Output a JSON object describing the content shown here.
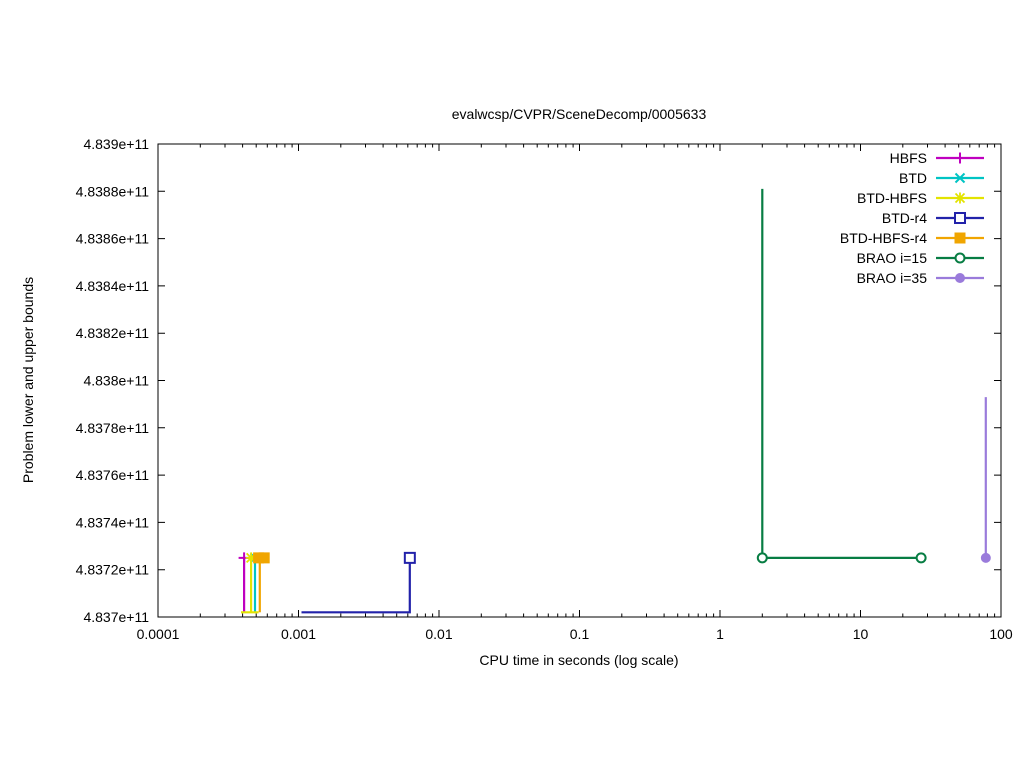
{
  "chart_data": {
    "type": "line",
    "title": "evalwcsp/CVPR/SceneDecomp/0005633",
    "xlabel": "CPU time in seconds (log scale)",
    "ylabel": "Problem lower and upper bounds",
    "x_scale": "log",
    "grid": false,
    "legend_position": "top-right",
    "xlim": [
      0.0001,
      100
    ],
    "ylim": [
      483700000000.0,
      483900000000.0
    ],
    "x_ticks": [
      {
        "value": 0.0001,
        "label": "0.0001"
      },
      {
        "value": 0.001,
        "label": "0.001"
      },
      {
        "value": 0.01,
        "label": "0.01"
      },
      {
        "value": 0.1,
        "label": "0.1"
      },
      {
        "value": 1,
        "label": "1"
      },
      {
        "value": 10,
        "label": "10"
      },
      {
        "value": 100,
        "label": "100"
      }
    ],
    "y_ticks": [
      {
        "value": 483700000000.0,
        "label": "4.837e+11"
      },
      {
        "value": 483720000000.0,
        "label": "4.8372e+11"
      },
      {
        "value": 483740000000.0,
        "label": "4.8374e+11"
      },
      {
        "value": 483760000000.0,
        "label": "4.8376e+11"
      },
      {
        "value": 483780000000.0,
        "label": "4.8378e+11"
      },
      {
        "value": 483800000000.0,
        "label": "4.838e+11"
      },
      {
        "value": 483820000000.0,
        "label": "4.8382e+11"
      },
      {
        "value": 483840000000.0,
        "label": "4.8384e+11"
      },
      {
        "value": 483860000000.0,
        "label": "4.8386e+11"
      },
      {
        "value": 483880000000.0,
        "label": "4.8388e+11"
      },
      {
        "value": 483900000000.0,
        "label": "4.839e+11"
      }
    ],
    "series": [
      {
        "name": "HBFS",
        "color": "#bf00bf",
        "marker": "plus",
        "lines": [
          [
            [
              0.00041,
              483702000000.0
            ],
            [
              0.00041,
              483725000000.0
            ]
          ]
        ],
        "markers": [
          [
            0.00041,
            483725000000.0
          ]
        ]
      },
      {
        "name": "BTD",
        "color": "#00c4c4",
        "marker": "x",
        "lines": [
          [
            [
              0.00049,
              483702000000.0
            ],
            [
              0.00049,
              483725000000.0
            ]
          ]
        ],
        "markers": [
          [
            0.00049,
            483725000000.0
          ]
        ]
      },
      {
        "name": "BTD-HBFS",
        "color": "#e3e300",
        "marker": "asterisk",
        "lines": [
          [
            [
              0.00039,
              483702000000.0
            ],
            [
              0.00052,
              483702000000.0
            ]
          ],
          [
            [
              0.00046,
              483702000000.0
            ],
            [
              0.00046,
              483725000000.0
            ]
          ]
        ],
        "markers": [
          [
            0.00046,
            483725000000.0
          ]
        ]
      },
      {
        "name": "BTD-r4",
        "color": "#2222aa",
        "marker": "open-square",
        "lines": [
          [
            [
              0.00105,
              483702000000.0
            ],
            [
              0.0062,
              483702000000.0
            ],
            [
              0.0062,
              483727000000.0
            ]
          ]
        ],
        "markers": [
          [
            0.0062,
            483725000000.0
          ]
        ]
      },
      {
        "name": "BTD-HBFS-r4",
        "color": "#f0a500",
        "marker": "filled-square",
        "lines": [
          [
            [
              0.00053,
              483702000000.0
            ],
            [
              0.00053,
              483725000000.0
            ]
          ]
        ],
        "markers": [
          [
            0.00052,
            483725000000.0
          ],
          [
            0.00057,
            483725000000.0
          ]
        ]
      },
      {
        "name": "BRAO i=15",
        "color": "#077d43",
        "marker": "open-circle",
        "lines": [
          [
            [
              2,
              483881000000.0
            ],
            [
              2,
              483725000000.0
            ],
            [
              27,
              483725000000.0
            ]
          ]
        ],
        "markers": [
          [
            2,
            483725000000.0
          ],
          [
            27,
            483725000000.0
          ]
        ]
      },
      {
        "name": "BRAO i=35",
        "color": "#9a7bdb",
        "marker": "filled-circle",
        "lines": [
          [
            [
              78,
              483793000000.0
            ],
            [
              78,
              483725000000.0
            ]
          ]
        ],
        "markers": [
          [
            78,
            483725000000.0
          ]
        ]
      }
    ]
  }
}
